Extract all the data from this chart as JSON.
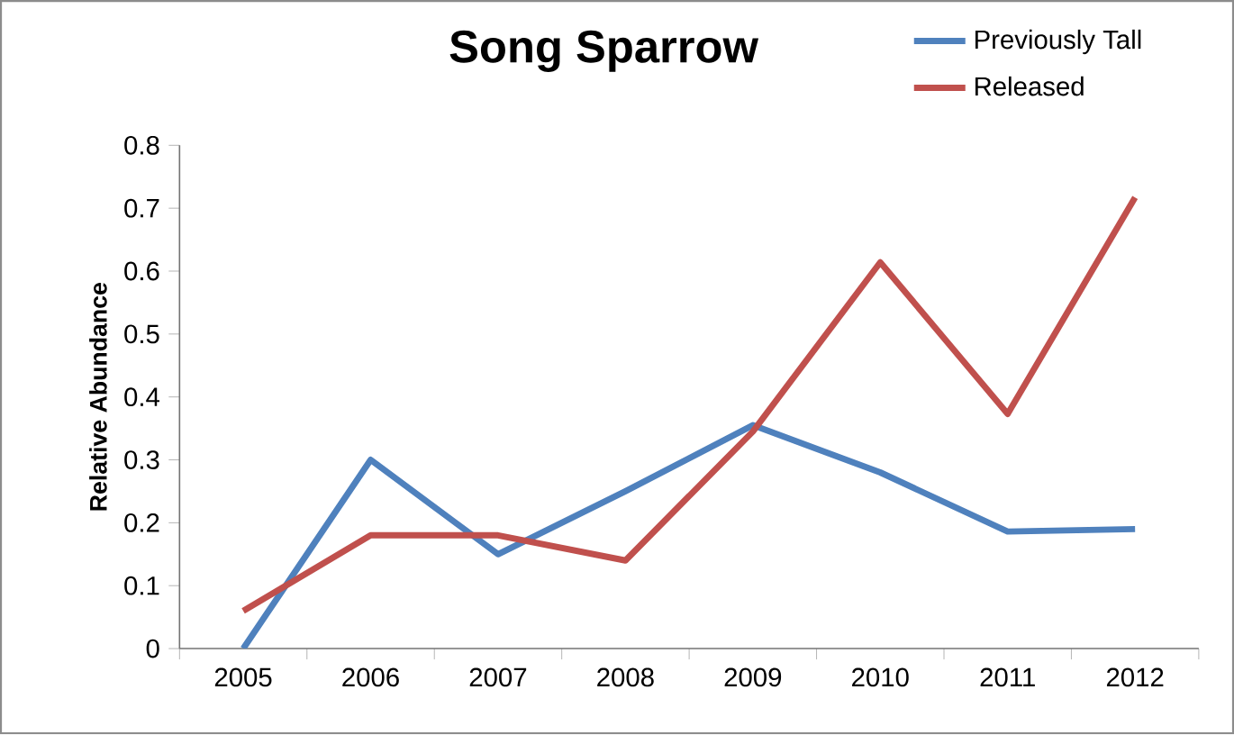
{
  "chart_data": {
    "type": "line",
    "title": "Song Sparrow",
    "ylabel": "Relative Abundance",
    "categories": [
      "2005",
      "2006",
      "2007",
      "2008",
      "2009",
      "2010",
      "2011",
      "2012"
    ],
    "series": [
      {
        "name": "Previously Tall",
        "color": "#4f81bd",
        "values": [
          0,
          0.3,
          0.15,
          0.25,
          0.355,
          0.28,
          0.186,
          0.19
        ]
      },
      {
        "name": "Released",
        "color": "#c0504d",
        "values": [
          0.06,
          0.18,
          0.18,
          0.14,
          0.345,
          0.614,
          0.373,
          0.717
        ]
      }
    ],
    "ylim": [
      0,
      0.8
    ],
    "yticks": [
      0,
      0.1,
      0.2,
      0.3,
      0.4,
      0.5,
      0.6,
      0.7,
      0.8
    ],
    "grid": false,
    "legend": "top right",
    "marker": "none",
    "line_style": "solid"
  }
}
